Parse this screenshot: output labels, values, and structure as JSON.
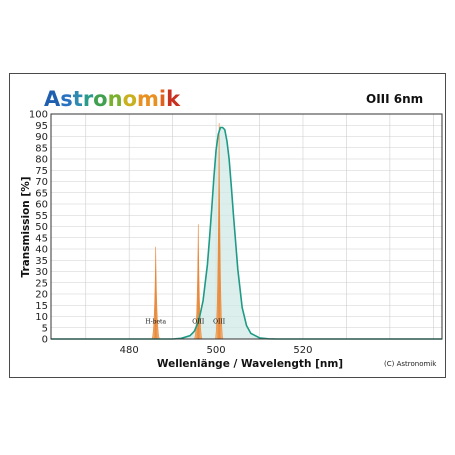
{
  "brand": {
    "name": "Astronomik",
    "letter_colors": [
      "#1f5fb0",
      "#2a72c0",
      "#2e8ab0",
      "#2a9a8a",
      "#40a050",
      "#7ab030",
      "#c8b020",
      "#e89020",
      "#e06020",
      "#c83020"
    ]
  },
  "filter_name": "OIII 6nm",
  "copyright": "(C) Astronomik",
  "chart_data": {
    "type": "line",
    "xlabel": "Wellenlänge / Wavelength [nm]",
    "ylabel": "Transmission [%]",
    "xlim": [
      462,
      552
    ],
    "ylim": [
      0,
      100
    ],
    "x_ticks": [
      480,
      500,
      520
    ],
    "y_ticks": [
      0,
      5,
      10,
      15,
      20,
      25,
      30,
      35,
      40,
      45,
      50,
      55,
      60,
      65,
      70,
      75,
      80,
      85,
      90,
      95,
      100
    ],
    "grid": true,
    "series": [
      {
        "kind": "transmission-curve",
        "color": "#1f9a86",
        "fill_color": "#cfe8e4",
        "x": [
          490,
          492,
          494,
          495,
          496,
          497,
          498,
          498.5,
          499,
          499.5,
          500,
          500.5,
          501,
          501.5,
          502,
          502.5,
          503,
          503.5,
          504,
          505,
          506,
          507,
          508,
          510,
          512,
          514
        ],
        "y": [
          0,
          0.3,
          1.5,
          3.5,
          8,
          17,
          33,
          45,
          58,
          72,
          84,
          91,
          94,
          94,
          93,
          88,
          80,
          68,
          55,
          31,
          14,
          6,
          2.5,
          0.5,
          0.1,
          0
        ]
      }
    ],
    "emission_lines": [
      {
        "label": "H-beta",
        "x": 486.1,
        "peak": 41,
        "color": "#e8883a"
      },
      {
        "label": "OIII",
        "x": 495.9,
        "peak": 51,
        "color": "#e8883a"
      },
      {
        "label": "OIII",
        "x": 500.7,
        "peak": 96,
        "color": "#e8883a"
      }
    ]
  }
}
